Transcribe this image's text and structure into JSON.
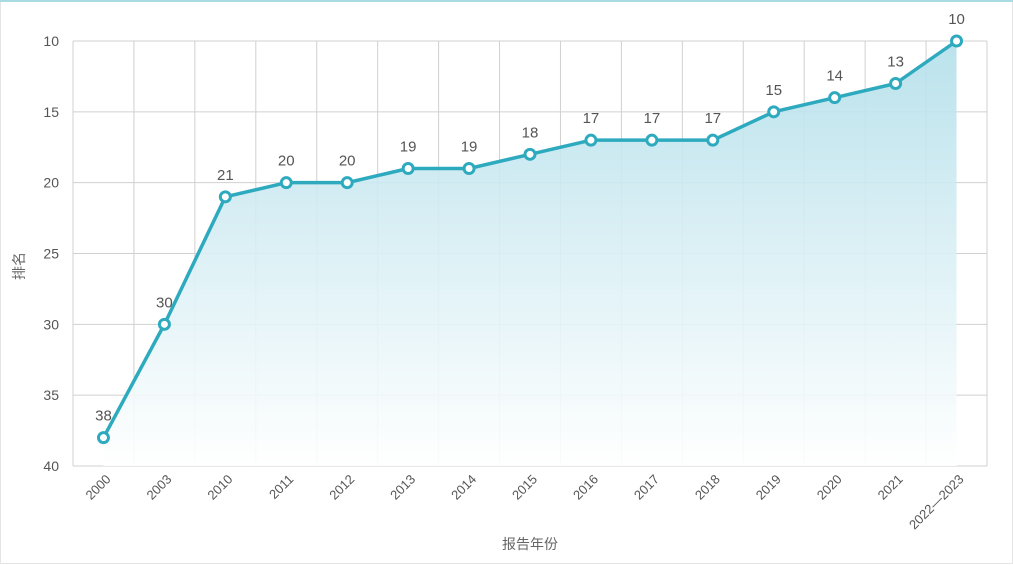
{
  "chart_data": {
    "type": "area",
    "xlabel": "报告年份",
    "ylabel": "排名",
    "categories": [
      "2000",
      "2003",
      "2010",
      "2011",
      "2012",
      "2013",
      "2014",
      "2015",
      "2016",
      "2017",
      "2018",
      "2019",
      "2020",
      "2021",
      "2022—2023"
    ],
    "values": [
      38,
      30,
      21,
      20,
      20,
      19,
      19,
      18,
      17,
      17,
      17,
      15,
      14,
      13,
      10
    ],
    "ylim": [
      10,
      40
    ],
    "y_inverted": true,
    "yticks": [
      10,
      15,
      20,
      25,
      30,
      35,
      40
    ],
    "grid": true,
    "colors": {
      "line": "#2eaabf",
      "fill_top": "#b9e2ec",
      "grid": "#d0d0d0",
      "text": "#555555"
    }
  }
}
